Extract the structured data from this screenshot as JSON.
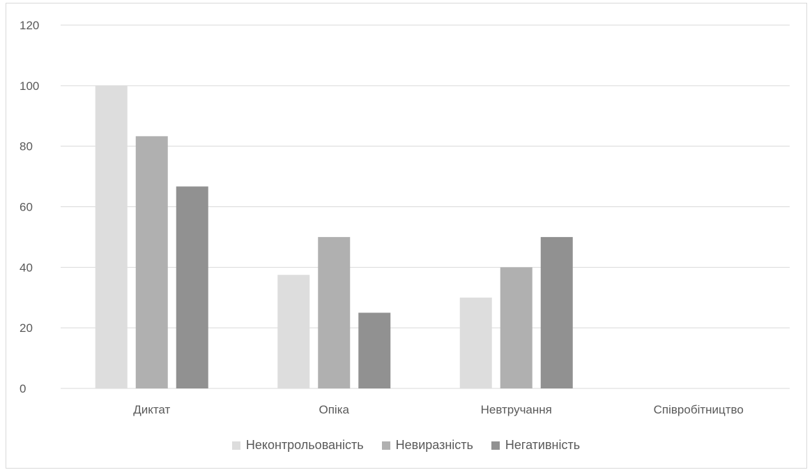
{
  "chart_data": {
    "type": "bar",
    "categories": [
      "Диктат",
      "Опіка",
      "Невтручання",
      "Співробітництво"
    ],
    "series": [
      {
        "name": "Неконтрольованість",
        "values": [
          100,
          37.5,
          30,
          0
        ],
        "color": "#dddddd"
      },
      {
        "name": "Невиразність",
        "values": [
          83.3,
          50,
          40,
          0
        ],
        "color": "#b0b0b0"
      },
      {
        "name": "Негативність",
        "values": [
          66.7,
          25,
          50,
          0
        ],
        "color": "#919191"
      }
    ],
    "y_ticks": [
      "0",
      "20",
      "40",
      "60",
      "80",
      "100",
      "120"
    ],
    "ylim": [
      0,
      120
    ],
    "grid": true,
    "legend_position": "bottom"
  }
}
